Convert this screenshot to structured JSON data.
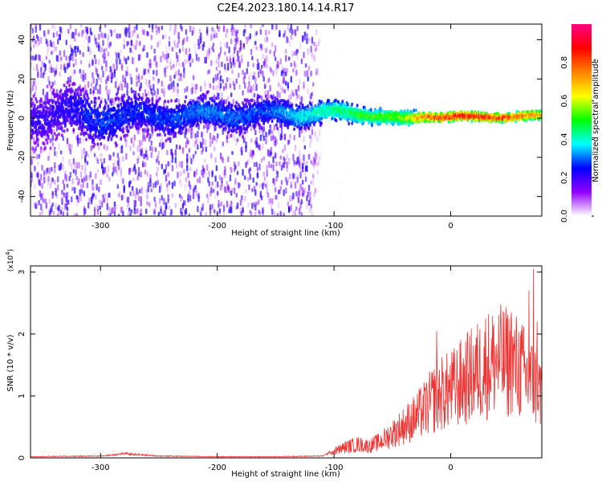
{
  "title": "C2E4.2023.180.14.14.R17",
  "chart_data": [
    {
      "type": "heatmap",
      "xlabel": "Height of straight line (km)",
      "ylabel": "Frequency (Hz)",
      "xlim": [
        -360,
        78
      ],
      "ylim": [
        -50,
        48
      ],
      "xticks": [
        -300,
        -200,
        -100,
        0
      ],
      "yticks": [
        -40,
        -20,
        0,
        20,
        40
      ],
      "grid": false,
      "colorbar": {
        "label": "Normalized spectral amplitude",
        "range": [
          0.0,
          1.0
        ],
        "ticks": [
          "0.0",
          "0.2",
          "0.4",
          "0.6",
          "0.8"
        ],
        "colormap": [
          "#ffffff",
          "#9400ff",
          "#0000ff",
          "#00ffff",
          "#00ff00",
          "#ffff00",
          "#ff8000",
          "#ff0000",
          "#ff0088"
        ]
      },
      "ridge": [
        {
          "x": -340,
          "f": 2,
          "spread": 9,
          "amp": 0.22
        },
        {
          "x": -300,
          "f": 1,
          "spread": 8,
          "amp": 0.3
        },
        {
          "x": -260,
          "f": 1,
          "spread": 6,
          "amp": 0.28
        },
        {
          "x": -210,
          "f": 2,
          "spread": 5,
          "amp": 0.34
        },
        {
          "x": -160,
          "f": 2,
          "spread": 5,
          "amp": 0.3
        },
        {
          "x": -110,
          "f": 3,
          "spread": 3.5,
          "amp": 0.45
        },
        {
          "x": -70,
          "f": 2,
          "spread": 2.5,
          "amp": 0.55
        },
        {
          "x": -40,
          "f": -1,
          "spread": 2.5,
          "amp": 0.6
        },
        {
          "x": -20,
          "f": 1,
          "spread": 1.5,
          "amp": 0.85
        },
        {
          "x": 20,
          "f": 0.5,
          "spread": 1.3,
          "amp": 0.95
        },
        {
          "x": 78,
          "f": 1,
          "spread": 1.5,
          "amp": 0.75
        }
      ],
      "noise_envelope": [
        {
          "x": -360,
          "amp": 0.3
        },
        {
          "x": -120,
          "amp": 0.3
        },
        {
          "x": -110,
          "amp": 0.02
        },
        {
          "x": 78,
          "amp": 0.0
        }
      ]
    },
    {
      "type": "line",
      "xlabel": "Height of straight line (km)",
      "ylabel": "SNR (10 * v/v)",
      "y_multiplier": "(x10⁴)",
      "y_multiplier_base": "(x10",
      "y_multiplier_exp": "4",
      "y_multiplier_close": ")",
      "xlim": [
        -360,
        78
      ],
      "ylim": [
        0,
        3.1
      ],
      "xticks": [
        -300,
        -200,
        -100,
        0
      ],
      "yticks": [
        0,
        1,
        2,
        3
      ],
      "grid": false,
      "series": [
        {
          "color": "#ee3333",
          "x": [
            -360,
            -300,
            -280,
            -250,
            -200,
            -150,
            -110,
            -100,
            -90,
            -80,
            -70,
            -60,
            -50,
            -40,
            -30,
            -20,
            -12,
            0,
            10,
            20,
            30,
            40,
            50,
            60,
            65,
            70,
            78
          ],
          "y": [
            0.02,
            0.03,
            0.07,
            0.03,
            0.02,
            0.02,
            0.03,
            0.12,
            0.2,
            0.25,
            0.22,
            0.3,
            0.45,
            0.6,
            0.75,
            0.95,
            1.15,
            1.25,
            1.4,
            1.55,
            1.7,
            1.8,
            1.75,
            1.65,
            1.45,
            1.4,
            1.2
          ]
        }
      ],
      "spikes": [
        {
          "x": -12,
          "y": 2.05
        },
        {
          "x": 30,
          "y": 2.25
        },
        {
          "x": 52,
          "y": 2.35
        },
        {
          "x": 67,
          "y": 2.7
        },
        {
          "x": 71,
          "y": 3.05
        },
        {
          "x": 74,
          "y": 2.2
        }
      ]
    }
  ]
}
